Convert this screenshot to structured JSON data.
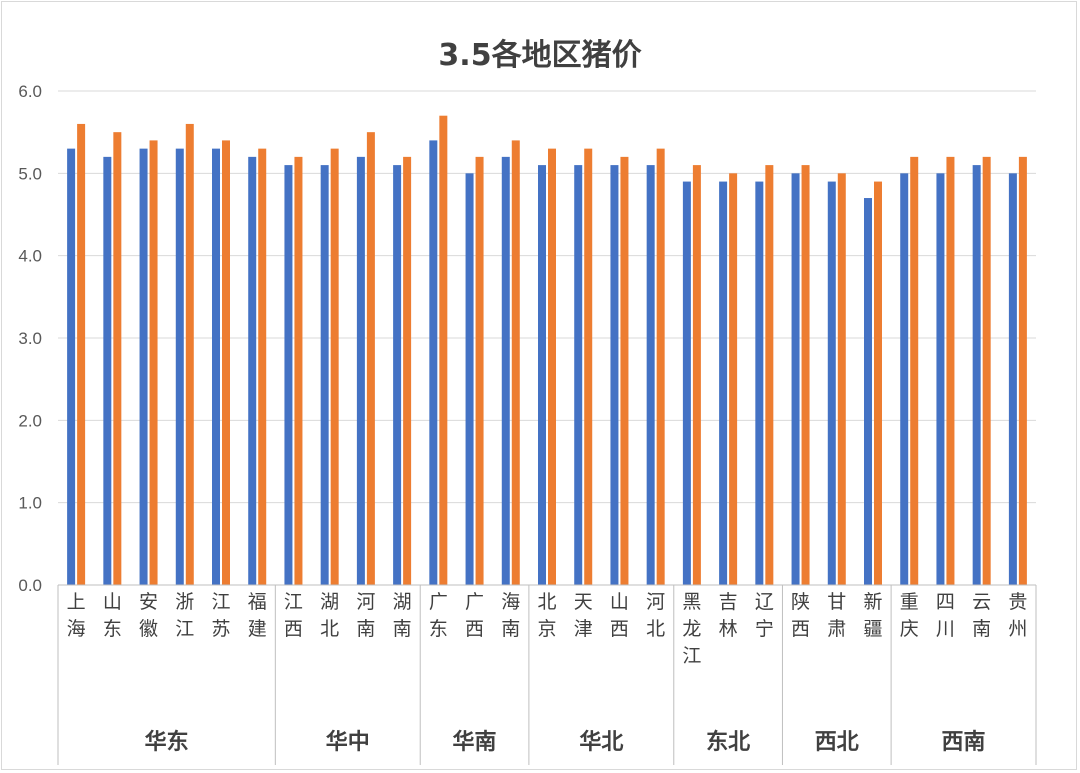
{
  "chart_data": {
    "type": "bar",
    "title": "3.5各地区猪价",
    "xlabel": "",
    "ylabel": "",
    "ylim": [
      0,
      6
    ],
    "y_ticks": [
      "0.0",
      "1.0",
      "2.0",
      "3.0",
      "4.0",
      "5.0",
      "6.0"
    ],
    "grid": true,
    "legend": "none",
    "categories": [
      "上海",
      "山东",
      "安徽",
      "浙江",
      "江苏",
      "福建",
      "江西",
      "湖北",
      "河南",
      "湖南",
      "广东",
      "广西",
      "海南",
      "北京",
      "天津",
      "山西",
      "河北",
      "黑龙江",
      "吉林",
      "辽宁",
      "陕西",
      "甘肃",
      "新疆",
      "重庆",
      "四川",
      "云南",
      "贵州"
    ],
    "groups": [
      {
        "label": "华东",
        "count": 6
      },
      {
        "label": "华中",
        "count": 4
      },
      {
        "label": "华南",
        "count": 3
      },
      {
        "label": "华北",
        "count": 4
      },
      {
        "label": "东北",
        "count": 3
      },
      {
        "label": "西北",
        "count": 3
      },
      {
        "label": "西南",
        "count": 4
      }
    ],
    "series": [
      {
        "color": "#4472c4",
        "values": [
          5.3,
          5.2,
          5.3,
          5.3,
          5.3,
          5.2,
          5.1,
          5.1,
          5.2,
          5.1,
          5.4,
          5.0,
          5.2,
          5.1,
          5.1,
          5.1,
          5.1,
          4.9,
          4.9,
          4.9,
          5.0,
          4.9,
          4.7,
          5.0,
          5.0,
          5.1,
          5.0
        ]
      },
      {
        "color": "#ed7d31",
        "values": [
          5.6,
          5.5,
          5.4,
          5.6,
          5.4,
          5.3,
          5.2,
          5.3,
          5.5,
          5.2,
          5.7,
          5.2,
          5.4,
          5.3,
          5.3,
          5.2,
          5.3,
          5.1,
          5.0,
          5.1,
          5.1,
          5.0,
          4.9,
          5.2,
          5.2,
          5.2,
          5.2
        ]
      }
    ]
  }
}
